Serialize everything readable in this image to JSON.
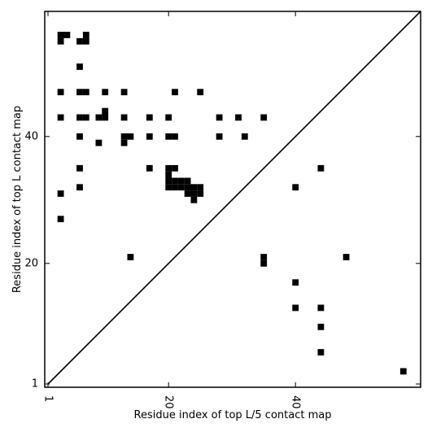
{
  "chart_data": {
    "type": "heatmap",
    "xlabel": "Residue index of top L/5 contact map",
    "ylabel": "Residue index of top L contact map",
    "xlim": [
      1,
      60
    ],
    "ylim": [
      1,
      60
    ],
    "x_ticks": [
      1,
      20,
      40
    ],
    "y_ticks": [
      1,
      20,
      40
    ],
    "x_tick_labels": [
      "1",
      "20",
      "40"
    ],
    "y_tick_labels": [
      "1",
      "20",
      "40"
    ],
    "diagonal_line": true,
    "upper_triangle_contacts": [
      [
        3,
        56
      ],
      [
        3,
        55
      ],
      [
        4,
        56
      ],
      [
        7,
        56
      ],
      [
        7,
        55
      ],
      [
        6,
        55
      ],
      [
        6,
        51
      ],
      [
        3,
        47
      ],
      [
        6,
        47
      ],
      [
        7,
        47
      ],
      [
        10,
        47
      ],
      [
        13,
        47
      ],
      [
        21,
        47
      ],
      [
        25,
        47
      ],
      [
        3,
        43
      ],
      [
        6,
        43
      ],
      [
        7,
        43
      ],
      [
        9,
        43
      ],
      [
        10,
        43
      ],
      [
        10,
        44
      ],
      [
        13,
        43
      ],
      [
        17,
        43
      ],
      [
        20,
        43
      ],
      [
        28,
        43
      ],
      [
        31,
        43
      ],
      [
        35,
        43
      ],
      [
        6,
        40
      ],
      [
        13,
        40
      ],
      [
        14,
        40
      ],
      [
        17,
        40
      ],
      [
        20,
        40
      ],
      [
        21,
        40
      ],
      [
        28,
        40
      ],
      [
        32,
        40
      ],
      [
        9,
        39
      ],
      [
        13,
        39
      ],
      [
        6,
        35
      ],
      [
        17,
        35
      ],
      [
        20,
        35
      ],
      [
        21,
        35
      ],
      [
        20,
        34
      ],
      [
        20,
        33
      ],
      [
        21,
        33
      ],
      [
        22,
        33
      ],
      [
        23,
        33
      ],
      [
        20,
        32
      ],
      [
        21,
        32
      ],
      [
        22,
        32
      ],
      [
        23,
        32
      ],
      [
        24,
        32
      ],
      [
        25,
        32
      ],
      [
        6,
        32
      ],
      [
        23,
        31
      ],
      [
        24,
        31
      ],
      [
        25,
        31
      ],
      [
        3,
        31
      ],
      [
        24,
        30
      ],
      [
        3,
        27
      ]
    ],
    "lower_triangle_contacts": [
      [
        14,
        21
      ],
      [
        35,
        21
      ],
      [
        35,
        20
      ],
      [
        48,
        21
      ],
      [
        40,
        32
      ],
      [
        44,
        35
      ],
      [
        40,
        17
      ],
      [
        40,
        13
      ],
      [
        44,
        13
      ],
      [
        44,
        10
      ],
      [
        44,
        6
      ],
      [
        57,
        3
      ]
    ]
  }
}
